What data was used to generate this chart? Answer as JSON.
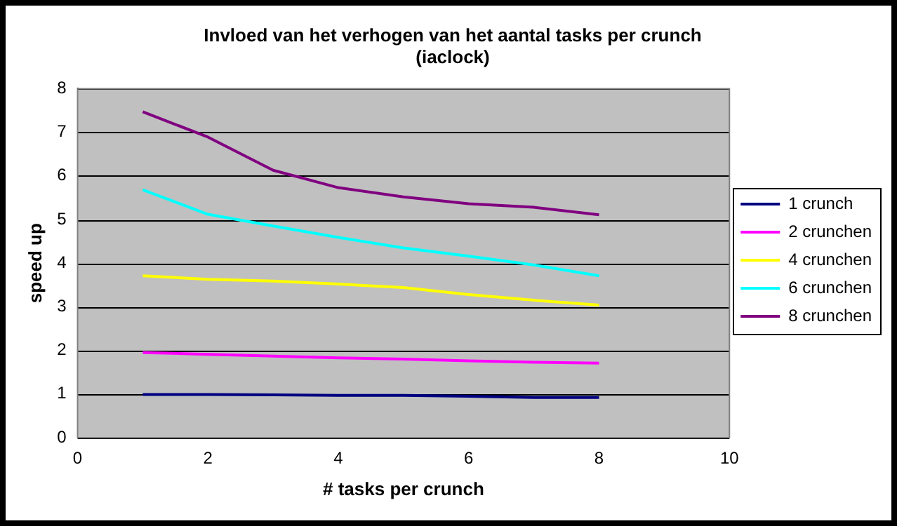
{
  "chart_data": {
    "type": "line",
    "title": "Invloed van het verhogen van het aantal tasks per crunch",
    "subtitle": "(iaclock)",
    "xlabel": "# tasks per crunch",
    "ylabel": "speed up",
    "x": [
      1,
      2,
      3,
      4,
      5,
      6,
      7,
      8
    ],
    "series": [
      {
        "name": "1 crunch",
        "color": "#000080",
        "values": [
          0.99,
          0.99,
          0.98,
          0.97,
          0.97,
          0.95,
          0.92,
          0.92
        ]
      },
      {
        "name": "2 crunchen",
        "color": "#ff00ff",
        "values": [
          1.95,
          1.91,
          1.87,
          1.83,
          1.8,
          1.76,
          1.73,
          1.71
        ]
      },
      {
        "name": "4 crunchen",
        "color": "#ffff00",
        "values": [
          3.71,
          3.63,
          3.59,
          3.52,
          3.44,
          3.28,
          3.15,
          3.04
        ]
      },
      {
        "name": "6 crunchen",
        "color": "#00ffff",
        "values": [
          5.68,
          5.12,
          4.85,
          4.59,
          4.35,
          4.16,
          3.96,
          3.71
        ]
      },
      {
        "name": "8 crunchen",
        "color": "#800080",
        "values": [
          7.47,
          6.89,
          6.13,
          5.73,
          5.52,
          5.36,
          5.28,
          5.11
        ]
      }
    ],
    "xlim": [
      0,
      10
    ],
    "xticks": [
      0,
      2,
      4,
      6,
      8,
      10
    ],
    "ylim": [
      0,
      8
    ],
    "yticks": [
      0,
      1,
      2,
      3,
      4,
      5,
      6,
      7,
      8
    ],
    "grid": "y",
    "legend": "right",
    "marker": "none",
    "line_style": "solid"
  }
}
